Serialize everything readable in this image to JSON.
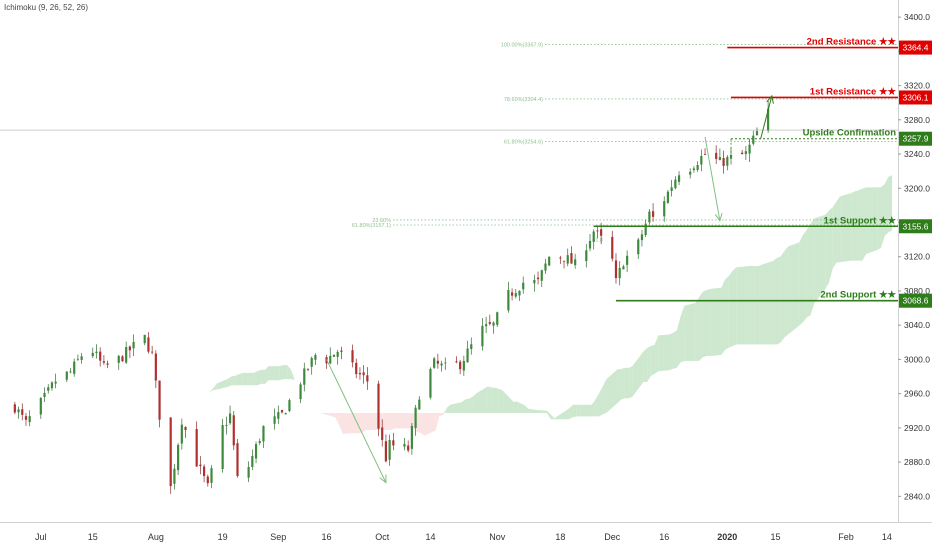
{
  "indicator": "Ichimoku (9, 26, 52, 26)",
  "colors": {
    "up": "#26a69a",
    "down": "#ef5350",
    "candle_body_up": "#ffffff",
    "cloud": "#a5d6a7",
    "cloud_red": "#f8c8c8",
    "resistance": "#e00000",
    "support": "#2e7d1a",
    "fib": "#8fbf8f",
    "arrow": "#7fbf7f"
  },
  "chart_data": {
    "type": "candlestick",
    "title": "",
    "xlabel": "",
    "ylabel": "",
    "ylim": [
      2810,
      3420
    ],
    "grid": false,
    "y_ticks": [
      2840,
      2880,
      2920,
      2960,
      3000,
      3040,
      3080,
      3120,
      3160,
      3200,
      3240,
      3280,
      3320,
      3360,
      3400
    ],
    "y_tick_labels": [
      "2840.0",
      "2880.0",
      "2920.0",
      "2960.0",
      "3000.0",
      "3040.0",
      "3080.0",
      "3120.0",
      "3160.0",
      "3200.0",
      "3240.0",
      "3280.0",
      "3320.0",
      "3360.0",
      "3400.0"
    ],
    "x_ticks": [
      {
        "label": "Jul",
        "date": "2019-07-01"
      },
      {
        "label": "15",
        "date": "2019-07-15"
      },
      {
        "label": "Aug",
        "date": "2019-08-01"
      },
      {
        "label": "19",
        "date": "2019-08-19"
      },
      {
        "label": "Sep",
        "date": "2019-09-03"
      },
      {
        "label": "16",
        "date": "2019-09-16"
      },
      {
        "label": "Oct",
        "date": "2019-10-01"
      },
      {
        "label": "14",
        "date": "2019-10-14"
      },
      {
        "label": "Nov",
        "date": "2019-11-01"
      },
      {
        "label": "18",
        "date": "2019-11-18"
      },
      {
        "label": "Dec",
        "date": "2019-12-02"
      },
      {
        "label": "16",
        "date": "2019-12-16"
      },
      {
        "label": "2020",
        "date": "2020-01-02",
        "bold": true
      },
      {
        "label": "15",
        "date": "2020-01-15"
      },
      {
        "label": "Feb",
        "date": "2020-02-03"
      },
      {
        "label": "14",
        "date": "2020-02-14"
      }
    ],
    "price_path": [
      [
        "2019-06-24",
        2945
      ],
      [
        "2019-06-27",
        2925
      ],
      [
        "2019-07-02",
        2955
      ],
      [
        "2019-07-05",
        2975
      ],
      [
        "2019-07-09",
        2985
      ],
      [
        "2019-07-12",
        3005
      ],
      [
        "2019-07-15",
        3010
      ],
      [
        "2019-07-18",
        2990
      ],
      [
        "2019-07-22",
        3000
      ],
      [
        "2019-07-26",
        3015
      ],
      [
        "2019-07-29",
        3025
      ],
      [
        "2019-07-31",
        3005
      ],
      [
        "2019-08-02",
        2935
      ],
      [
        "2019-08-05",
        2850
      ],
      [
        "2019-08-08",
        2930
      ],
      [
        "2019-08-12",
        2880
      ],
      [
        "2019-08-15",
        2850
      ],
      [
        "2019-08-19",
        2920
      ],
      [
        "2019-08-21",
        2935
      ],
      [
        "2019-08-23",
        2860
      ],
      [
        "2019-08-26",
        2875
      ],
      [
        "2019-08-30",
        2920
      ],
      [
        "2019-09-04",
        2935
      ],
      [
        "2019-09-09",
        2975
      ],
      [
        "2019-09-13",
        3005
      ],
      [
        "2019-09-16",
        3000
      ],
      [
        "2019-09-19",
        3010
      ],
      [
        "2019-09-24",
        2985
      ],
      [
        "2019-09-27",
        2975
      ],
      [
        "2019-10-02",
        2885
      ],
      [
        "2019-10-03",
        2900
      ],
      [
        "2019-10-08",
        2895
      ],
      [
        "2019-10-11",
        2960
      ],
      [
        "2019-10-15",
        2995
      ],
      [
        "2019-10-18",
        2990
      ],
      [
        "2019-10-22",
        2995
      ],
      [
        "2019-10-28",
        3035
      ],
      [
        "2019-10-31",
        3040
      ],
      [
        "2019-11-04",
        3075
      ],
      [
        "2019-11-08",
        3090
      ],
      [
        "2019-11-12",
        3090
      ],
      [
        "2019-11-15",
        3120
      ],
      [
        "2019-11-19",
        3120
      ],
      [
        "2019-11-22",
        3110
      ],
      [
        "2019-11-27",
        3150
      ],
      [
        "2019-11-29",
        3140
      ],
      [
        "2019-12-02",
        3115
      ],
      [
        "2019-12-03",
        3090
      ],
      [
        "2019-12-05",
        3115
      ],
      [
        "2019-12-09",
        3135
      ],
      [
        "2019-12-12",
        3170
      ],
      [
        "2019-12-13",
        3165
      ],
      [
        "2019-12-17",
        3195
      ],
      [
        "2019-12-20",
        3220
      ],
      [
        "2019-12-23",
        3225
      ],
      [
        "2019-12-27",
        3240
      ],
      [
        "2019-12-31",
        3230
      ],
      [
        "2020-01-03",
        3235
      ],
      [
        "2020-01-07",
        3240
      ],
      [
        "2020-01-10",
        3265
      ],
      [
        "2020-01-13",
        3288
      ]
    ],
    "levels": [
      {
        "name": "2nd Resistance ★★",
        "price": 3364.4,
        "value_label": "3364.4",
        "kind": "resistance",
        "from": "2020-01-02"
      },
      {
        "name": "1st Resistance ★★",
        "price": 3306.1,
        "value_label": "3306.1",
        "kind": "resistance",
        "from": "2020-01-03"
      },
      {
        "name": "Upside Confirmation",
        "price": 3257.9,
        "value_label": "3257.9",
        "kind": "support",
        "from": "2020-01-03",
        "dashed": true
      },
      {
        "name": "1st Support ★★",
        "price": 3155.6,
        "value_label": "3155.6",
        "kind": "support",
        "from": "2019-11-27"
      },
      {
        "name": "2nd Support ★★",
        "price": 3068.6,
        "value_label": "3068.6",
        "kind": "support",
        "from": "2019-12-03"
      }
    ],
    "fib_labels": [
      {
        "text": "100.00%(3367.9)",
        "price": 3367.9
      },
      {
        "text": "78.60%(3304.4)",
        "price": 3304.4
      },
      {
        "text": "61.80%(3254.6)",
        "price": 3254.6
      },
      {
        "text": "23.60%",
        "price": 3163
      },
      {
        "text": "61.80%(3157.1)",
        "price": 3157.1
      },
      {
        "text": "61.8",
        "price": 3140
      }
    ],
    "annotations": [
      {
        "type": "arrow",
        "from": [
          "2019-09-16",
          3000
        ],
        "to": [
          "2019-10-02",
          2856
        ]
      },
      {
        "type": "arrow",
        "from": [
          "2019-12-27",
          3260
        ],
        "to": [
          "2019-12-31",
          3162
        ]
      },
      {
        "type": "arrow",
        "from": [
          "2020-01-11",
          3258
        ],
        "to": [
          "2020-01-14",
          3308
        ]
      }
    ]
  }
}
